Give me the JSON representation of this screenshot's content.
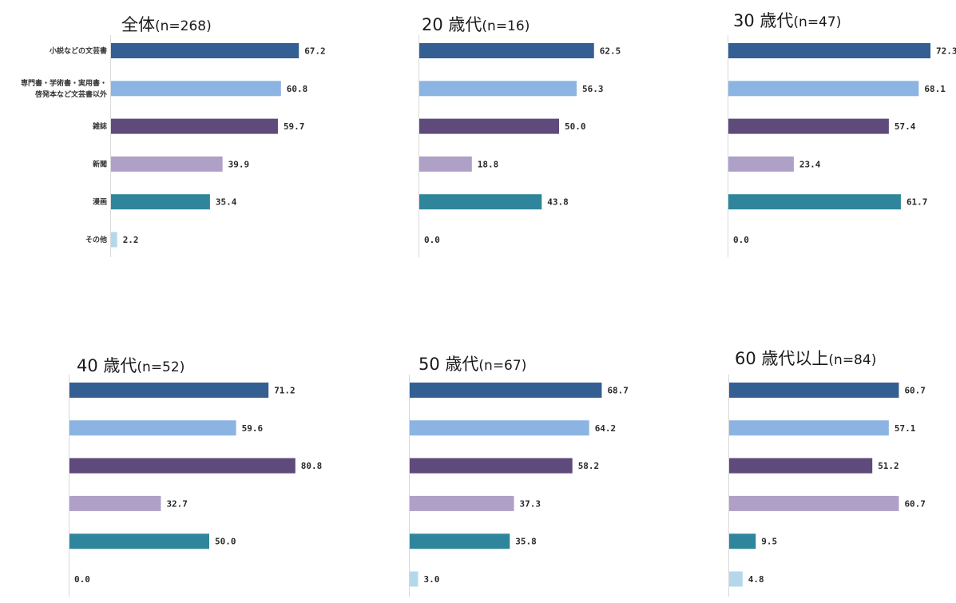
{
  "chart_data": {
    "type": "bar",
    "orientation": "horizontal",
    "categories": [
      [
        "小説などの文芸書"
      ],
      [
        "専門書・学術書・実用書・",
        "啓発本など文芸書以外"
      ],
      [
        "雑誌"
      ],
      [
        "新聞"
      ],
      [
        "漫画"
      ],
      [
        "その他"
      ]
    ],
    "colors": [
      "#335f93",
      "#8cb4e2",
      "#5f4a7c",
      "#afa0c8",
      "#2f869c",
      "#b4d8ea"
    ],
    "panels": [
      {
        "title_main": "全体",
        "title_n": "(n=268)",
        "values": [
          67.2,
          60.8,
          59.7,
          39.9,
          35.4,
          2.2
        ]
      },
      {
        "title_main": "20 歳代",
        "title_n": "(n=16)",
        "values": [
          62.5,
          56.3,
          50.0,
          18.8,
          43.8,
          0.0
        ]
      },
      {
        "title_main": "30 歳代",
        "title_n": "(n=47)",
        "values": [
          72.3,
          68.1,
          57.4,
          23.4,
          61.7,
          0.0
        ]
      },
      {
        "title_main": "40 歳代",
        "title_n": "(n=52)",
        "values": [
          71.2,
          59.6,
          80.8,
          32.7,
          50.0,
          0.0
        ]
      },
      {
        "title_main": "50 歳代",
        "title_n": "(n=67)",
        "values": [
          68.7,
          64.2,
          58.2,
          37.3,
          35.8,
          3.0
        ]
      },
      {
        "title_main": "60 歳代以上",
        "title_n": "(n=84)",
        "values": [
          60.7,
          57.1,
          51.2,
          60.7,
          9.5,
          4.8
        ]
      }
    ]
  }
}
